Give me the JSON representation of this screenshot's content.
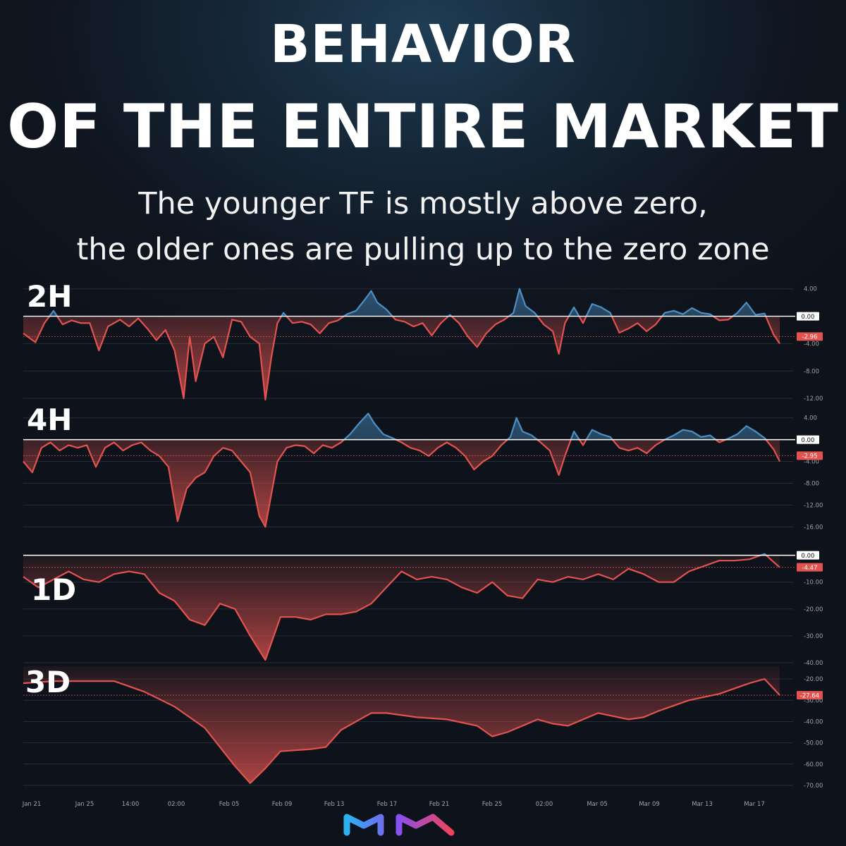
{
  "header": {
    "title_line1": "BEHAVIOR",
    "title_line2": "OF THE ENTIRE MARKET",
    "subtitle_line1": "The younger TF is mostly above zero,",
    "subtitle_line2": "the older ones are pulling up to the zero zone"
  },
  "colors": {
    "positive": "#4a8fc4",
    "negative": "#e2534f",
    "zero_line": "#ffffff",
    "grid": "#262c36"
  },
  "x_axis": {
    "labels": [
      "Jan 21",
      "Jan 25",
      "14:00",
      "02:00",
      "Feb 05",
      "Feb 09",
      "Feb 13",
      "Feb 17",
      "Feb 21",
      "Feb 25",
      "02:00",
      "Mar 05",
      "Mar 09",
      "Mar 13",
      "Mar 17"
    ]
  },
  "chart_data": [
    {
      "type": "area",
      "label": "2H",
      "zero_badge": "0.00",
      "last_badge": "-2.96",
      "last_value": -2.96,
      "y_ticks": [
        "4.00",
        "0.00",
        "-4.00",
        "-8.00",
        "-12.00"
      ],
      "ylim": [
        -12.5,
        5
      ],
      "points": [
        [
          0,
          -2.5
        ],
        [
          4,
          -3.8
        ],
        [
          7,
          -1
        ],
        [
          10,
          0.8
        ],
        [
          13,
          -1.2
        ],
        [
          16,
          -0.6
        ],
        [
          19,
          -1
        ],
        [
          22,
          -1
        ],
        [
          25,
          -5
        ],
        [
          28,
          -1.5
        ],
        [
          32,
          -0.5
        ],
        [
          35,
          -1.5
        ],
        [
          38,
          -0.3
        ],
        [
          41,
          -1.8
        ],
        [
          44,
          -3.5
        ],
        [
          47,
          -2
        ],
        [
          50,
          -5
        ],
        [
          53,
          -12
        ],
        [
          55,
          -3
        ],
        [
          57,
          -9.5
        ],
        [
          60,
          -4
        ],
        [
          63,
          -3
        ],
        [
          66,
          -6
        ],
        [
          69,
          -0.5
        ],
        [
          72,
          -0.8
        ],
        [
          75,
          -3
        ],
        [
          78,
          -4
        ],
        [
          80,
          -12.2
        ],
        [
          82,
          -6
        ],
        [
          84,
          -1
        ],
        [
          86,
          0.5
        ],
        [
          89,
          -1
        ],
        [
          92,
          -0.8
        ],
        [
          95,
          -1.2
        ],
        [
          98,
          -2.5
        ],
        [
          101,
          -1
        ],
        [
          104,
          -0.6
        ],
        [
          107,
          0.3
        ],
        [
          110,
          0.8
        ],
        [
          113,
          2.5
        ],
        [
          115,
          3.7
        ],
        [
          117,
          2
        ],
        [
          120,
          1
        ],
        [
          123,
          -0.5
        ],
        [
          126,
          -0.8
        ],
        [
          129,
          -1.5
        ],
        [
          132,
          -1
        ],
        [
          135,
          -2.8
        ],
        [
          138,
          -1
        ],
        [
          141,
          0.2
        ],
        [
          144,
          -1
        ],
        [
          147,
          -3
        ],
        [
          150,
          -4.5
        ],
        [
          153,
          -2.5
        ],
        [
          156,
          -1.2
        ],
        [
          159,
          -0.5
        ],
        [
          162,
          0.5
        ],
        [
          164,
          4
        ],
        [
          166,
          1.5
        ],
        [
          169,
          0.5
        ],
        [
          172,
          -1.2
        ],
        [
          175,
          -2.2
        ],
        [
          177,
          -5.5
        ],
        [
          179,
          -1
        ],
        [
          182,
          1.3
        ],
        [
          185,
          -1
        ],
        [
          188,
          1.8
        ],
        [
          191,
          1.3
        ],
        [
          194,
          0.5
        ],
        [
          197,
          -2.4
        ],
        [
          200,
          -1.8
        ],
        [
          203,
          -1
        ],
        [
          206,
          -2.2
        ],
        [
          209,
          -1.2
        ],
        [
          212,
          0.5
        ],
        [
          215,
          0.8
        ],
        [
          218,
          0.3
        ],
        [
          221,
          1.2
        ],
        [
          224,
          0.5
        ],
        [
          227,
          0.3
        ],
        [
          230,
          -0.6
        ],
        [
          233,
          -0.5
        ],
        [
          236,
          0.5
        ],
        [
          239,
          2
        ],
        [
          242,
          0.2
        ],
        [
          245,
          0.4
        ],
        [
          248,
          -2.7
        ],
        [
          250,
          -4
        ]
      ]
    },
    {
      "type": "area",
      "label": "4H",
      "zero_badge": "0.00",
      "last_badge": "-2.95",
      "last_value": -2.95,
      "y_ticks": [
        "4.00",
        "0.00",
        "-4.00",
        "-8.00",
        "-12.00",
        "-16.00"
      ],
      "ylim": [
        -17,
        5
      ],
      "points": [
        [
          0,
          -4
        ],
        [
          3,
          -6
        ],
        [
          6,
          -1.5
        ],
        [
          9,
          -0.5
        ],
        [
          12,
          -2
        ],
        [
          15,
          -1
        ],
        [
          18,
          -1.5
        ],
        [
          21,
          -1
        ],
        [
          24,
          -5
        ],
        [
          27,
          -1.5
        ],
        [
          30,
          -0.5
        ],
        [
          33,
          -2
        ],
        [
          36,
          -1
        ],
        [
          39,
          -0.5
        ],
        [
          42,
          -2
        ],
        [
          45,
          -3
        ],
        [
          48,
          -5
        ],
        [
          51,
          -15
        ],
        [
          54,
          -9
        ],
        [
          57,
          -7
        ],
        [
          60,
          -6
        ],
        [
          63,
          -3
        ],
        [
          66,
          -1.5
        ],
        [
          69,
          -2
        ],
        [
          72,
          -4
        ],
        [
          75,
          -6
        ],
        [
          78,
          -14
        ],
        [
          80,
          -16
        ],
        [
          82,
          -10
        ],
        [
          84,
          -4
        ],
        [
          87,
          -1.5
        ],
        [
          90,
          -1
        ],
        [
          93,
          -1.2
        ],
        [
          96,
          -2.5
        ],
        [
          99,
          -1
        ],
        [
          102,
          -1.5
        ],
        [
          105,
          -0.5
        ],
        [
          108,
          1
        ],
        [
          111,
          3
        ],
        [
          114,
          4.8
        ],
        [
          116,
          3
        ],
        [
          119,
          1
        ],
        [
          122,
          0.3
        ],
        [
          125,
          -0.5
        ],
        [
          128,
          -1.5
        ],
        [
          131,
          -2
        ],
        [
          134,
          -3
        ],
        [
          137,
          -1.5
        ],
        [
          140,
          -0.5
        ],
        [
          143,
          -1.5
        ],
        [
          146,
          -3
        ],
        [
          149,
          -5.5
        ],
        [
          152,
          -4
        ],
        [
          155,
          -3
        ],
        [
          158,
          -1
        ],
        [
          161,
          0.5
        ],
        [
          163,
          4
        ],
        [
          165,
          1.5
        ],
        [
          168,
          0.8
        ],
        [
          171,
          -0.5
        ],
        [
          174,
          -2
        ],
        [
          177,
          -6.5
        ],
        [
          179,
          -3
        ],
        [
          182,
          1.5
        ],
        [
          185,
          -1
        ],
        [
          188,
          1.8
        ],
        [
          191,
          1
        ],
        [
          194,
          0.5
        ],
        [
          197,
          -1.5
        ],
        [
          200,
          -2
        ],
        [
          203,
          -1.5
        ],
        [
          206,
          -2.5
        ],
        [
          209,
          -1
        ],
        [
          212,
          0
        ],
        [
          215,
          0.8
        ],
        [
          218,
          1.8
        ],
        [
          221,
          1.5
        ],
        [
          224,
          0.5
        ],
        [
          227,
          0.8
        ],
        [
          230,
          -0.5
        ],
        [
          233,
          0.2
        ],
        [
          236,
          1
        ],
        [
          239,
          2.5
        ],
        [
          242,
          1.5
        ],
        [
          245,
          0.3
        ],
        [
          248,
          -1.8
        ],
        [
          250,
          -4
        ]
      ]
    },
    {
      "type": "area",
      "label": "1D",
      "zero_badge": "0.00",
      "last_badge": "-4.47",
      "last_value": -4.47,
      "y_ticks": [
        "0.00",
        "-10.00",
        "-20.00",
        "-30.00",
        "-40.00"
      ],
      "ylim": [
        -40,
        2
      ],
      "points": [
        [
          0,
          -8
        ],
        [
          5,
          -12
        ],
        [
          10,
          -9
        ],
        [
          15,
          -6
        ],
        [
          20,
          -9
        ],
        [
          25,
          -10
        ],
        [
          30,
          -7
        ],
        [
          35,
          -6
        ],
        [
          40,
          -7
        ],
        [
          45,
          -14
        ],
        [
          50,
          -17
        ],
        [
          55,
          -24
        ],
        [
          60,
          -26
        ],
        [
          65,
          -18
        ],
        [
          70,
          -20
        ],
        [
          75,
          -30
        ],
        [
          80,
          -39
        ],
        [
          85,
          -23
        ],
        [
          90,
          -23
        ],
        [
          95,
          -24
        ],
        [
          100,
          -22
        ],
        [
          105,
          -22
        ],
        [
          110,
          -21
        ],
        [
          115,
          -18
        ],
        [
          120,
          -12
        ],
        [
          125,
          -6
        ],
        [
          130,
          -9
        ],
        [
          135,
          -8
        ],
        [
          140,
          -9
        ],
        [
          145,
          -12
        ],
        [
          150,
          -14
        ],
        [
          155,
          -10
        ],
        [
          160,
          -15
        ],
        [
          165,
          -16
        ],
        [
          170,
          -9
        ],
        [
          175,
          -10
        ],
        [
          180,
          -8
        ],
        [
          185,
          -9
        ],
        [
          190,
          -7
        ],
        [
          195,
          -9
        ],
        [
          200,
          -5
        ],
        [
          205,
          -7
        ],
        [
          210,
          -10
        ],
        [
          215,
          -10
        ],
        [
          220,
          -6
        ],
        [
          225,
          -4
        ],
        [
          230,
          -2
        ],
        [
          235,
          -2
        ],
        [
          240,
          -1.5
        ],
        [
          245,
          0.5
        ],
        [
          250,
          -4.5
        ]
      ]
    },
    {
      "type": "area",
      "label": "3D",
      "last_badge": "-27.64",
      "last_value": -27.64,
      "y_ticks": [
        "-20.00",
        "-30.00",
        "-40.00",
        "-50.00",
        "-60.00",
        "-70.00"
      ],
      "ylim": [
        -72,
        -14
      ],
      "points": [
        [
          0,
          -22
        ],
        [
          10,
          -21
        ],
        [
          20,
          -21
        ],
        [
          30,
          -21
        ],
        [
          40,
          -26
        ],
        [
          50,
          -33
        ],
        [
          60,
          -43
        ],
        [
          70,
          -61
        ],
        [
          75,
          -69
        ],
        [
          80,
          -62
        ],
        [
          85,
          -54
        ],
        [
          95,
          -53
        ],
        [
          100,
          -52
        ],
        [
          105,
          -44
        ],
        [
          110,
          -40
        ],
        [
          115,
          -36
        ],
        [
          120,
          -36
        ],
        [
          125,
          -37
        ],
        [
          130,
          -38
        ],
        [
          140,
          -39
        ],
        [
          150,
          -42
        ],
        [
          155,
          -47
        ],
        [
          160,
          -45
        ],
        [
          165,
          -42
        ],
        [
          170,
          -39
        ],
        [
          175,
          -41
        ],
        [
          180,
          -42
        ],
        [
          190,
          -36
        ],
        [
          200,
          -39
        ],
        [
          205,
          -38
        ],
        [
          210,
          -35
        ],
        [
          220,
          -30
        ],
        [
          230,
          -27
        ],
        [
          240,
          -22
        ],
        [
          245,
          -20
        ],
        [
          250,
          -27.6
        ]
      ]
    }
  ]
}
